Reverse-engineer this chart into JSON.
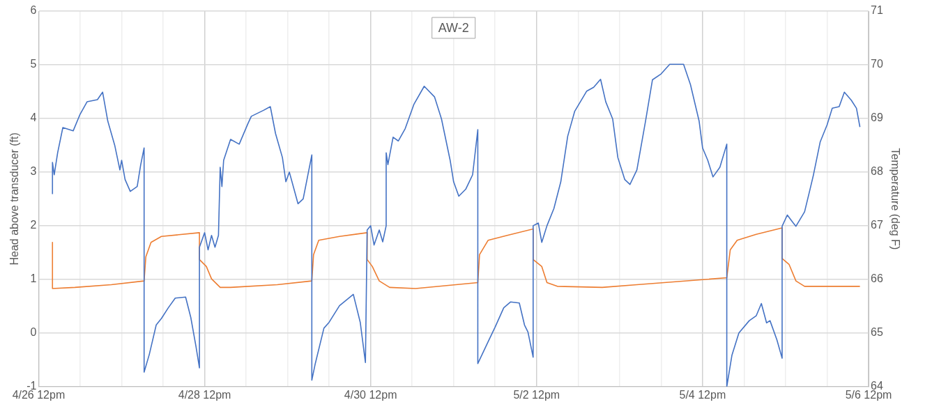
{
  "chart_data": {
    "type": "line",
    "title": "AW-2",
    "ylabel": "Head above transducer (ft)",
    "y2label": "Temperature (deg F)",
    "xlim": [
      "--04-26T12:00",
      "--05-06T12:00"
    ],
    "xticks": [
      {
        "value": "--04-26T12:00",
        "label": "4/26 12pm"
      },
      {
        "value": "--04-27T00:00",
        "label": null
      },
      {
        "value": "--04-27T12:00",
        "label": null
      },
      {
        "value": "--04-28T00:00",
        "label": null
      },
      {
        "value": "--04-28T12:00",
        "label": "4/28 12pm"
      },
      {
        "value": "--04-29T00:00",
        "label": null
      },
      {
        "value": "--04-29T12:00",
        "label": null
      },
      {
        "value": "--04-30T00:00",
        "label": null
      },
      {
        "value": "--04-30T12:00",
        "label": "4/30 12pm"
      },
      {
        "value": "--05-01T00:00",
        "label": null
      },
      {
        "value": "--05-01T12:00",
        "label": null
      },
      {
        "value": "--05-02T00:00",
        "label": null
      },
      {
        "value": "--05-02T12:00",
        "label": "5/2 12pm"
      },
      {
        "value": "--05-03T00:00",
        "label": null
      },
      {
        "value": "--05-03T12:00",
        "label": null
      },
      {
        "value": "--05-04T00:00",
        "label": null
      },
      {
        "value": "--05-04T12:00",
        "label": "5/4 12pm"
      },
      {
        "value": "--05-05T00:00",
        "label": null
      },
      {
        "value": "--05-05T12:00",
        "label": null
      },
      {
        "value": "--05-06T00:00",
        "label": null
      },
      {
        "value": "--05-06T12:00",
        "label": "5/6 12pm"
      }
    ],
    "ylim": [
      -1,
      6
    ],
    "yticks": [
      -1,
      0,
      1,
      2,
      3,
      4,
      5,
      6
    ],
    "y2lim": [
      64,
      71
    ],
    "y2ticks": [
      64,
      65,
      66,
      67,
      68,
      69,
      70,
      71
    ],
    "grid": true,
    "marker": "none",
    "series": [
      {
        "color": "#4472c4",
        "x": [
          "--04-26T16:00",
          "--04-26T16:00",
          "--04-26T16:30",
          "--04-26T17:30",
          "--04-26T19:00",
          "--04-26T22:00",
          "--04-27T00:00",
          "--04-27T02:00",
          "--04-27T05:00",
          "--04-27T06:30",
          "--04-27T08:00",
          "--04-27T10:00",
          "--04-27T11:30",
          "--04-27T12:00",
          "--04-27T13:00",
          "--04-27T14:30",
          "--04-27T16:30",
          "--04-27T17:30",
          "--04-27T18:30",
          "--04-27T18:30",
          "--04-27T20:00",
          "--04-27T22:00",
          "--04-27T23:30",
          "--04-28T01:30",
          "--04-28T03:30",
          "--04-28T06:30",
          "--04-28T08:00",
          "--04-28T09:30",
          "--04-28T10:30",
          "--04-28T10:30",
          "--04-28T12:00",
          "--04-28T13:00",
          "--04-28T14:00",
          "--04-28T15:00",
          "--04-28T16:00",
          "--04-28T16:30",
          "--04-28T17:00",
          "--04-28T17:30",
          "--04-28T19:30",
          "--04-28T22:00",
          "--04-29T00:30",
          "--04-29T01:30",
          "--04-29T05:00",
          "--04-29T07:00",
          "--04-29T08:30",
          "--04-29T10:30",
          "--04-29T11:30",
          "--04-29T12:30",
          "--04-29T15:00",
          "--04-29T16:30",
          "--04-29T19:00",
          "--04-29T19:00",
          "--04-29T20:00",
          "--04-29T22:30",
          "--04-30T00:00",
          "--04-30T03:00",
          "--04-30T07:00",
          "--04-30T09:00",
          "--04-30T10:30",
          "--04-30T11:00",
          "--04-30T12:00",
          "--04-30T13:00",
          "--04-30T14:30",
          "--04-30T15:30",
          "--04-30T16:30",
          "--04-30T16:30",
          "--04-30T17:00",
          "--04-30T18:30",
          "--04-30T20:00",
          "--04-30T22:00",
          "--05-01T00:30",
          "--05-01T03:30",
          "--05-01T06:30",
          "--05-01T08:30",
          "--05-01T11:00",
          "--05-01T12:00",
          "--05-01T13:30",
          "--05-01T15:30",
          "--05-01T17:30",
          "--05-01T19:00",
          "--05-01T19:00",
          "--05-01T22:00",
          "--05-02T00:00",
          "--05-02T02:30",
          "--05-02T04:30",
          "--05-02T07:00",
          "--05-02T08:30",
          "--05-02T09:30",
          "--05-02T11:00",
          "--05-02T11:00",
          "--05-02T12:30",
          "--05-02T13:30",
          "--05-02T15:00",
          "--05-02T17:00",
          "--05-02T19:00",
          "--05-02T21:00",
          "--05-02T23:00",
          "--05-03T02:30",
          "--05-03T04:30",
          "--05-03T06:30",
          "--05-03T08:00",
          "--05-03T10:00",
          "--05-03T11:30",
          "--05-03T13:30",
          "--05-03T15:00",
          "--05-03T17:00",
          "--05-03T19:30",
          "--05-03T21:30",
          "--05-04T00:00",
          "--05-04T02:30",
          "--05-04T06:30",
          "--05-04T08:30",
          "--05-04T11:00",
          "--05-04T12:00",
          "--05-04T13:30",
          "--05-04T15:00",
          "--05-04T17:00",
          "--05-04T19:00",
          "--05-04T19:00",
          "--05-04T20:30",
          "--05-04T22:30",
          "--05-05T01:30",
          "--05-05T03:30",
          "--05-05T05:00",
          "--05-05T06:30",
          "--05-05T07:30",
          "--05-05T09:30",
          "--05-05T11:00",
          "--05-05T11:00",
          "--05-05T12:30",
          "--05-05T14:00",
          "--05-05T15:00",
          "--05-05T17:30",
          "--05-05T19:00",
          "--05-05T20:00",
          "--05-05T22:00",
          "--05-06T00:00",
          "--05-06T01:30",
          "--05-06T03:30",
          "--05-06T05:00",
          "--05-06T07:00",
          "--05-06T08:30",
          "--05-06T09:30"
        ],
        "values": [
          2.59,
          3.18,
          2.95,
          3.36,
          3.83,
          3.77,
          4.08,
          4.31,
          4.35,
          4.49,
          3.95,
          3.5,
          3.04,
          3.22,
          2.86,
          2.64,
          2.73,
          3.13,
          3.45,
          -0.73,
          -0.4,
          0.15,
          0.27,
          0.47,
          0.65,
          0.67,
          0.29,
          -0.25,
          -0.65,
          1.6,
          1.87,
          1.55,
          1.82,
          1.6,
          1.82,
          3.09,
          2.73,
          3.22,
          3.61,
          3.52,
          3.9,
          4.04,
          4.15,
          4.22,
          3.72,
          3.27,
          2.82,
          3.0,
          2.41,
          2.5,
          3.32,
          -0.88,
          -0.57,
          0.09,
          0.2,
          0.51,
          0.72,
          0.2,
          -0.55,
          1.92,
          2.0,
          1.64,
          1.92,
          1.7,
          2.0,
          3.36,
          3.14,
          3.65,
          3.58,
          3.81,
          4.26,
          4.6,
          4.4,
          3.99,
          3.22,
          2.82,
          2.55,
          2.68,
          2.95,
          3.79,
          -0.57,
          -0.16,
          0.11,
          0.47,
          0.58,
          0.56,
          0.15,
          0.02,
          -0.45,
          2.0,
          2.05,
          1.69,
          2.0,
          2.32,
          2.82,
          3.67,
          4.13,
          4.51,
          4.58,
          4.73,
          4.31,
          3.99,
          3.27,
          2.86,
          2.77,
          3.04,
          3.95,
          4.72,
          4.83,
          5.01,
          5.01,
          4.63,
          3.95,
          3.45,
          3.22,
          2.91,
          3.09,
          3.52,
          -1.0,
          -0.41,
          0.0,
          0.23,
          0.32,
          0.55,
          0.19,
          0.23,
          -0.13,
          -0.47,
          1.99,
          2.2,
          2.07,
          1.99,
          2.26,
          2.66,
          2.93,
          3.56,
          3.88,
          4.19,
          4.22,
          4.49,
          4.34,
          4.19,
          3.84
        ]
      },
      {
        "color": "#ed7d31",
        "axis": "y2",
        "x": [
          "--04-26T16:00",
          "--04-26T16:00",
          "--04-26T22:30",
          "--04-27T09:00",
          "--04-27T18:30",
          "--04-27T19:00",
          "--04-27T20:30",
          "--04-27T23:30",
          "--04-28T10:30",
          "--04-28T10:30",
          "--04-28T12:30",
          "--04-28T14:00",
          "--04-28T16:30",
          "--04-28T19:30",
          "--04-29T09:00",
          "--04-29T19:00",
          "--04-29T19:30",
          "--04-29T21:00",
          "--04-30T03:00",
          "--04-30T11:00",
          "--04-30T11:00",
          "--04-30T12:30",
          "--04-30T14:30",
          "--04-30T17:30",
          "--05-01T01:00",
          "--05-01T19:00",
          "--05-01T19:30",
          "--05-01T22:00",
          "--05-02T03:30",
          "--05-02T11:00",
          "--05-02T11:00",
          "--05-02T13:30",
          "--05-02T15:00",
          "--05-02T18:00",
          "--05-03T07:00",
          "--05-03T17:00",
          "--05-04T19:00",
          "--05-04T20:00",
          "--05-04T22:00",
          "--05-05T03:30",
          "--05-05T11:00",
          "--05-05T11:00",
          "--05-05T13:00",
          "--05-05T15:00",
          "--05-05T17:30",
          "--05-06T09:30"
        ],
        "values": [
          66.69,
          65.83,
          65.85,
          65.9,
          65.97,
          66.42,
          66.69,
          66.8,
          66.87,
          66.37,
          66.24,
          66.01,
          65.85,
          65.85,
          65.9,
          65.97,
          66.46,
          66.73,
          66.8,
          66.87,
          66.37,
          66.24,
          65.97,
          65.85,
          65.83,
          65.94,
          66.46,
          66.73,
          66.82,
          66.94,
          66.37,
          66.24,
          65.94,
          65.87,
          65.85,
          65.9,
          66.03,
          66.55,
          66.73,
          66.84,
          66.96,
          66.39,
          66.28,
          65.97,
          65.87,
          65.87
        ]
      }
    ]
  }
}
